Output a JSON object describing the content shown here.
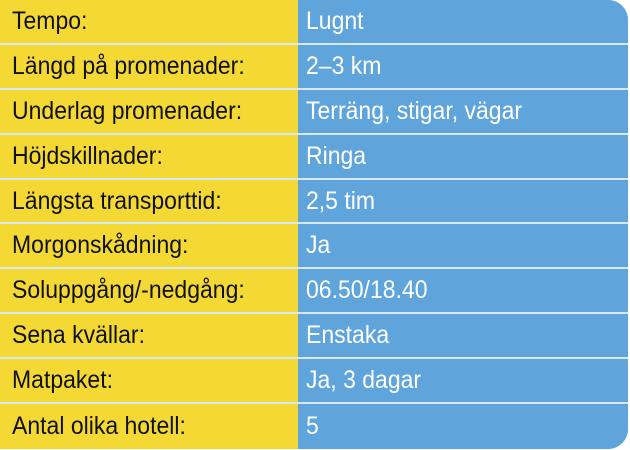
{
  "colors": {
    "label_bg": "#f4d935",
    "value_bg": "#5fa5dc",
    "label_text": "#111111",
    "value_text": "#ffffff"
  },
  "rows": [
    {
      "label": "Tempo:",
      "value": "Lugnt"
    },
    {
      "label": "Längd på promenader:",
      "value": "2–3 km"
    },
    {
      "label": "Underlag promenader:",
      "value": "Terräng, stigar, vägar"
    },
    {
      "label": "Höjdskillnader:",
      "value": "Ringa"
    },
    {
      "label": "Längsta transporttid:",
      "value": "2,5 tim"
    },
    {
      "label": "Morgonskådning:",
      "value": "Ja"
    },
    {
      "label": "Soluppgång/-nedgång:",
      "value": "06.50/18.40"
    },
    {
      "label": "Sena kvällar:",
      "value": "Enstaka"
    },
    {
      "label": "Matpaket:",
      "value": "Ja, 3 dagar"
    },
    {
      "label": "Antal olika hotell:",
      "value": "5"
    }
  ]
}
